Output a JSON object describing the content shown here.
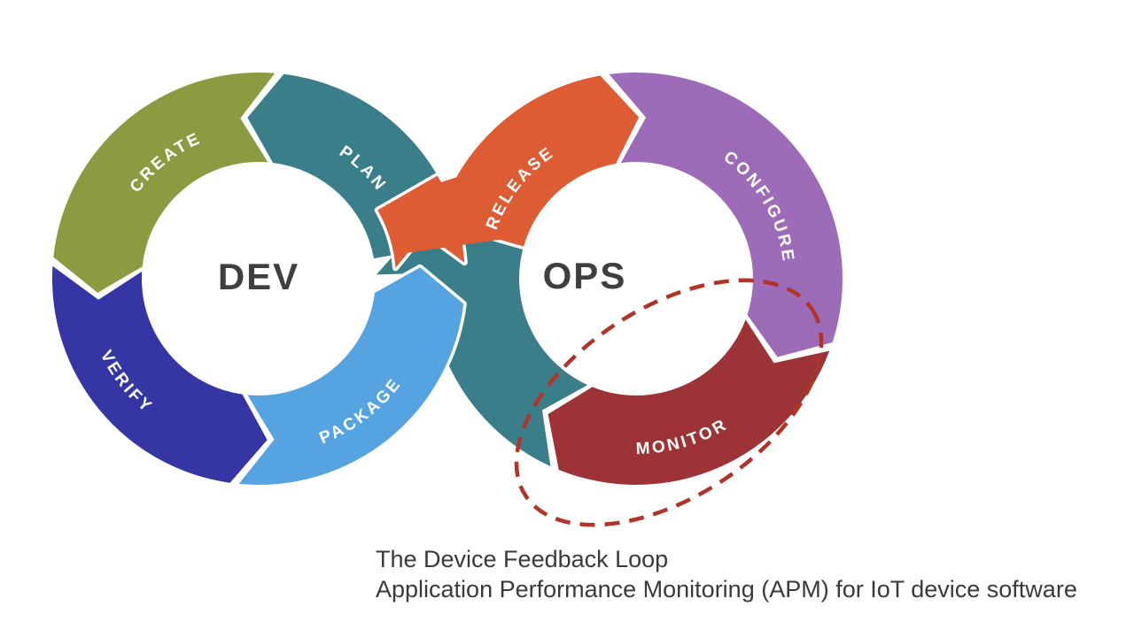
{
  "diagram": {
    "dev_label": "DEV",
    "ops_label": "OPS",
    "segments": [
      {
        "id": "plan",
        "label": "PLAN",
        "color": "#3A7E8A"
      },
      {
        "id": "create",
        "label": "CREATE",
        "color": "#8A9B40"
      },
      {
        "id": "verify",
        "label": "VERIFY",
        "color": "#3536A3"
      },
      {
        "id": "package",
        "label": "PACKAGE",
        "color": "#55A4E1"
      },
      {
        "id": "release",
        "label": "RELEASE",
        "color": "#DE5C33"
      },
      {
        "id": "configure",
        "label": "CONFIGURE",
        "color": "#9C6CB8"
      },
      {
        "id": "monitor",
        "label": "MONITOR",
        "color": "#9E3337"
      },
      {
        "id": "ops-loop",
        "label": "",
        "color": "#3A7E8A"
      }
    ],
    "highlight": {
      "shape": "dashed-ellipse",
      "target": "monitor",
      "color": "#B03427"
    },
    "caption_line1": "The Device Feedback Loop",
    "caption_line2": "Application Performance Monitoring (APM) for IoT device software",
    "text_color": "#3F3F3F"
  }
}
